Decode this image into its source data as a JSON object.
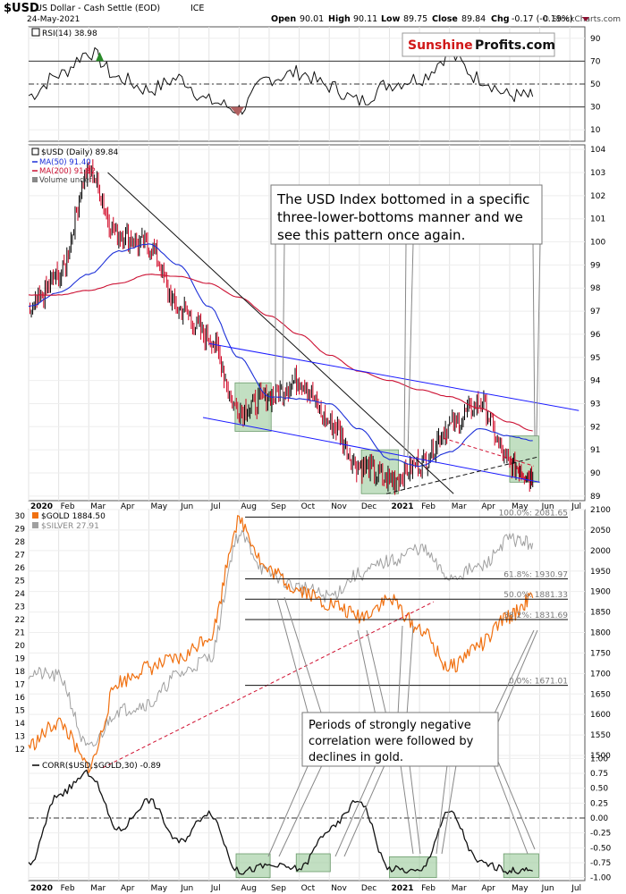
{
  "header": {
    "symbol": "$USD",
    "name": "US Dollar - Cash Settle (EOD)",
    "exchange": "ICE",
    "date": "24-May-2021",
    "watermark": "© StockCharts.com",
    "ohlc": {
      "open_label": "Open",
      "open": "90.01",
      "high_label": "High",
      "high": "90.11",
      "low_label": "Low",
      "low": "89.75",
      "close_label": "Close",
      "close": "89.84",
      "chg_label": "Chg",
      "chg": "-0.17 (-0.19%)"
    }
  },
  "logo": {
    "part1": "Sunshine",
    "part2": "Profits.com"
  },
  "annotations": {
    "usd_box": [
      "The USD Index bottomed in a specific",
      "three-lower-bottoms manner and we",
      "see this pattern once again."
    ],
    "gold_box": [
      "Periods of strongly negative",
      "correlation were followed by",
      "declines in gold."
    ]
  },
  "x_axis": {
    "labels": [
      "2020",
      "Feb",
      "Mar",
      "Apr",
      "May",
      "Jun",
      "Jul",
      "Aug",
      "Sep",
      "Oct",
      "Nov",
      "Dec",
      "2021",
      "Feb",
      "Mar",
      "Apr",
      "May",
      "Jun",
      "Jul"
    ],
    "bold": [
      "2020",
      "2021"
    ]
  },
  "colors": {
    "price": "#000000",
    "down_bar": "#d00020",
    "ma50": "#1c2fd8",
    "ma200": "#cc1133",
    "gold": "#f07010",
    "silver": "#a0a0a0",
    "green_box": "#8fc48f",
    "trend_blue": "#1a1aff",
    "red_dashed": "#d01030",
    "rsi_up": "#2a8a2a",
    "rsi_down": "#b06060"
  },
  "chart_data": [
    {
      "type": "line",
      "title": "RSI(14) 38.98",
      "ylim": [
        0,
        100
      ],
      "y_ticks": [
        10,
        30,
        50,
        70,
        90
      ],
      "reference_lines": [
        70,
        50,
        30
      ],
      "x": [
        "2020-01",
        "2020-02",
        "2020-03",
        "2020-04",
        "2020-05",
        "2020-06",
        "2020-07",
        "2020-08",
        "2020-09",
        "2020-10",
        "2020-11",
        "2020-12",
        "2021-01",
        "2021-02",
        "2021-03",
        "2021-04",
        "2021-05",
        "2021-05-24"
      ],
      "series": [
        {
          "name": "RSI(14)",
          "values": [
            40,
            58,
            78,
            55,
            45,
            55,
            35,
            28,
            55,
            60,
            48,
            35,
            50,
            55,
            75,
            55,
            40,
            38.98
          ]
        }
      ]
    },
    {
      "type": "line",
      "title": "$USD (Daily) 89.84",
      "ylim": [
        88.8,
        104.2
      ],
      "y_ticks": [
        89,
        90,
        91,
        92,
        93,
        94,
        95,
        96,
        97,
        98,
        99,
        100,
        101,
        102,
        103,
        104
      ],
      "legend": [
        "$USD (Daily) 89.84",
        "MA(50) 91.40",
        "MA(200) 91.82",
        "Volume undef"
      ],
      "x": [
        "2020-01",
        "2020-02",
        "2020-03",
        "2020-04",
        "2020-05",
        "2020-06",
        "2020-07",
        "2020-08",
        "2020-09",
        "2020-10",
        "2020-11",
        "2020-12",
        "2021-01",
        "2021-02",
        "2021-03",
        "2021-04",
        "2021-05",
        "2021-05-24"
      ],
      "series": [
        {
          "name": "$USD (Daily) 89.84",
          "values": [
            97.0,
            98.5,
            103.0,
            100.3,
            99.8,
            97.1,
            95.9,
            92.7,
            93.3,
            94.0,
            92.2,
            90.3,
            89.7,
            90.4,
            92.0,
            93.0,
            90.4,
            89.84
          ]
        },
        {
          "name": "MA(50) 91.40",
          "values": [
            97.2,
            97.8,
            98.6,
            99.6,
            99.9,
            99.0,
            97.2,
            95.0,
            93.3,
            93.2,
            93.0,
            91.9,
            90.6,
            90.3,
            90.9,
            91.9,
            91.6,
            91.4
          ]
        },
        {
          "name": "MA(200) 91.82",
          "values": [
            97.7,
            97.7,
            97.9,
            98.2,
            98.6,
            98.5,
            98.2,
            97.6,
            96.8,
            96.0,
            95.1,
            94.4,
            94.0,
            93.6,
            93.3,
            92.8,
            92.2,
            91.82
          ]
        }
      ]
    },
    {
      "type": "line",
      "title": "$GOLD 1884.50",
      "ylim": [
        1500,
        2100
      ],
      "y_ticks": [
        1500,
        1550,
        1600,
        1650,
        1700,
        1750,
        1800,
        1850,
        1900,
        1950,
        2000,
        2050,
        2100
      ],
      "fib_levels": [
        {
          "label": "100.0%: 2081.65",
          "value": 2081.65
        },
        {
          "label": "61.8%: 1930.97",
          "value": 1930.97
        },
        {
          "label": "50.0%: 1881.33",
          "value": 1881.33
        },
        {
          "label": "38.2%: 1831.69",
          "value": 1831.69
        },
        {
          "label": "0.0%: 1671.01",
          "value": 1671.01
        }
      ],
      "x": [
        "2020-01",
        "2020-02",
        "2020-03",
        "2020-04",
        "2020-05",
        "2020-06",
        "2020-07",
        "2020-08",
        "2020-09",
        "2020-10",
        "2020-11",
        "2020-12",
        "2021-01",
        "2021-02",
        "2021-03",
        "2021-04",
        "2021-05",
        "2021-05-24"
      ],
      "series": [
        {
          "name": "$GOLD 1884.50",
          "values": [
            1525,
            1580,
            1475,
            1680,
            1715,
            1735,
            1790,
            2070,
            1950,
            1905,
            1870,
            1840,
            1880,
            1810,
            1715,
            1770,
            1840,
            1884.5
          ]
        }
      ]
    },
    {
      "type": "line",
      "title": "$SILVER 27.91",
      "ylim": [
        11.5,
        30.5
      ],
      "y_ticks": [
        12,
        13,
        14,
        15,
        16,
        17,
        18,
        19,
        20,
        21,
        22,
        23,
        24,
        25,
        26,
        27,
        28,
        29,
        30
      ],
      "x": [
        "2020-01",
        "2020-02",
        "2020-03",
        "2020-04",
        "2020-05",
        "2020-06",
        "2020-07",
        "2020-08",
        "2020-09",
        "2020-10",
        "2020-11",
        "2020-12",
        "2021-01",
        "2021-02",
        "2021-03",
        "2021-04",
        "2021-05",
        "2021-05-24"
      ],
      "series": [
        {
          "name": "$SILVER 27.91",
          "values": [
            17.9,
            17.6,
            12.0,
            15.0,
            15.5,
            17.8,
            19.0,
            28.5,
            25.5,
            24.5,
            23.8,
            25.5,
            26.5,
            27.5,
            25.3,
            26.0,
            28.2,
            27.91
          ]
        }
      ]
    },
    {
      "type": "line",
      "title": "CORR($USD,$GOLD,30) -0.89",
      "ylim": [
        -1.05,
        1.05
      ],
      "y_ticks": [
        -1.0,
        -0.75,
        -0.5,
        -0.25,
        0.0,
        0.25,
        0.5,
        0.75,
        1.0
      ],
      "y_tick_labels": [
        "-1.00",
        "-0.75",
        "-0.50",
        "-0.25",
        "0.00",
        "0.25",
        "0.50",
        "0.75",
        "1.00"
      ],
      "reference_lines": [
        0.0
      ],
      "x": [
        "2020-01",
        "2020-02",
        "2020-03",
        "2020-04",
        "2020-05",
        "2020-06",
        "2020-07",
        "2020-08",
        "2020-09",
        "2020-10",
        "2020-11",
        "2020-12",
        "2021-01",
        "2021-02",
        "2021-03",
        "2021-04",
        "2021-05",
        "2021-05-24"
      ],
      "series": [
        {
          "name": "CORR($USD,$GOLD,30)",
          "values": [
            -0.8,
            0.4,
            0.75,
            -0.2,
            0.3,
            -0.4,
            0.1,
            -0.9,
            -0.8,
            -0.85,
            -0.2,
            0.3,
            -0.85,
            -0.9,
            0.1,
            -0.75,
            -0.88,
            -0.89
          ]
        }
      ]
    }
  ]
}
